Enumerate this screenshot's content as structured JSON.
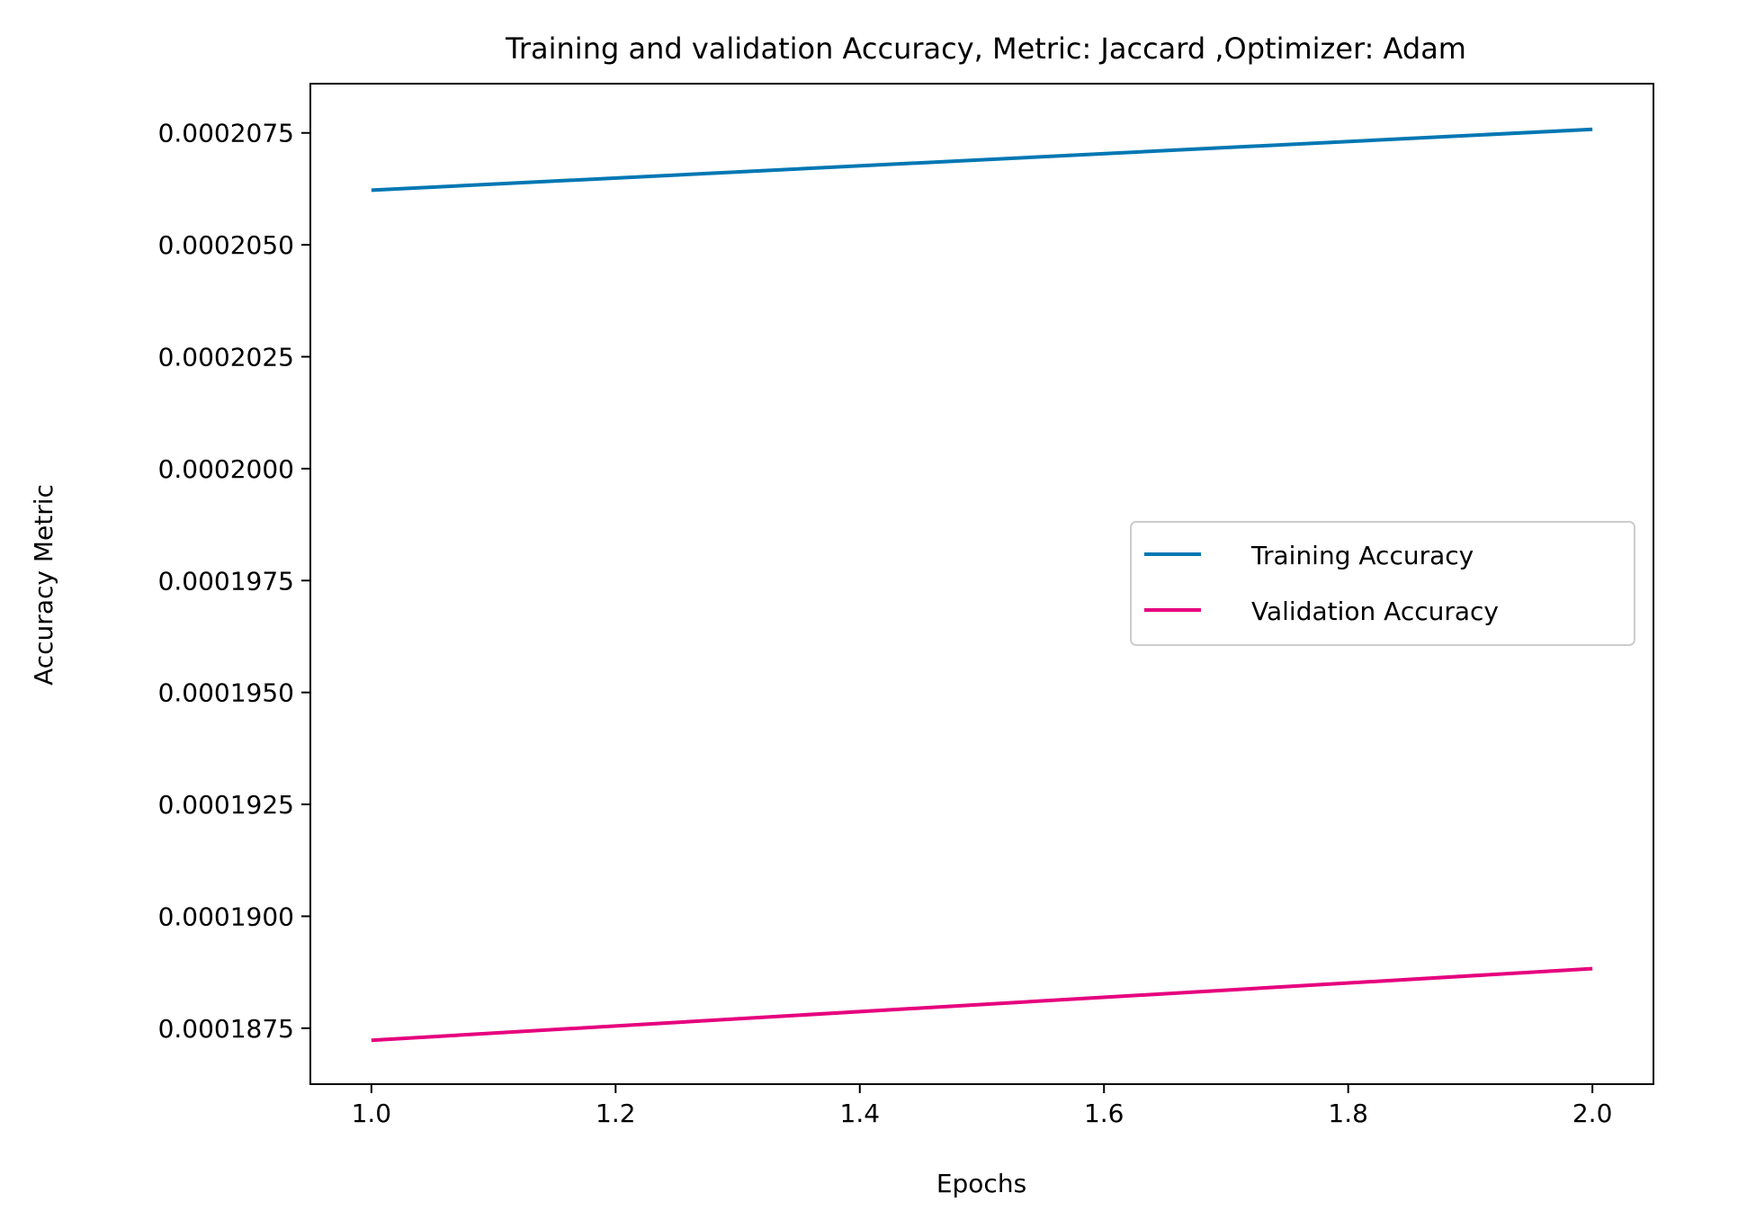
{
  "chart_data": {
    "type": "line",
    "title": "Training and validation Accuracy, Metric: Jaccard ,Optimizer: Adam",
    "xlabel": "Epochs",
    "ylabel": "Accuracy Metric",
    "x": [
      1.0,
      2.0
    ],
    "xlim": [
      0.95,
      2.05
    ],
    "ylim": [
      0.00018625,
      0.0002086
    ],
    "xticks": [
      1.0,
      1.2,
      1.4,
      1.6,
      1.8,
      2.0
    ],
    "xtick_labels": [
      "1.0",
      "1.2",
      "1.4",
      "1.6",
      "1.8",
      "2.0"
    ],
    "yticks": [
      0.0001875,
      0.00019,
      0.0001925,
      0.000195,
      0.0001975,
      0.0002,
      0.0002025,
      0.000205,
      0.0002075
    ],
    "ytick_labels": [
      "0.0001875",
      "0.0001900",
      "0.0001925",
      "0.0001950",
      "0.0001975",
      "0.0002000",
      "0.0002025",
      "0.0002050",
      "0.0002075"
    ],
    "grid": false,
    "legend_position": "center-right",
    "series": [
      {
        "name": "Training Accuracy",
        "color": "#0077b3",
        "values": [
          0.00020622,
          0.00020758
        ]
      },
      {
        "name": "Validation Accuracy",
        "color": "#e6007e",
        "values": [
          0.00018723,
          0.00018883
        ]
      }
    ]
  }
}
